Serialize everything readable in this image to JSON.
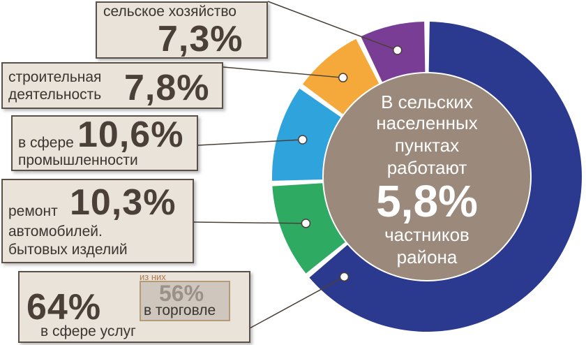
{
  "chart_data": {
    "type": "donut",
    "title": "",
    "slices": [
      {
        "label": "в сфере услуг",
        "value": 64,
        "display": "64%",
        "color": "#2b3a8f"
      },
      {
        "label": "ремонт автомобилей. бытовых изделий",
        "value": 10.3,
        "display": "10,3%",
        "color": "#2eaa63"
      },
      {
        "label": "в сфере промышленности",
        "value": 10.6,
        "display": "10,6%",
        "color": "#2ea3dc"
      },
      {
        "label": "строительная деятельность",
        "value": 7.8,
        "display": "7,8%",
        "color": "#f5a93a"
      },
      {
        "label": "сельское хозяйство",
        "value": 7.3,
        "display": "7,3%",
        "color": "#7a3d96"
      }
    ],
    "center": {
      "text_top": [
        "В сельских",
        "населенных",
        "пунктах",
        "работают"
      ],
      "value": "5,8%",
      "text_bottom": [
        "частников",
        "района"
      ],
      "color": "#9b897b"
    },
    "sub_note": {
      "caption": "из них",
      "value": "56%",
      "label": "в торговле"
    }
  },
  "labels": {
    "agri": {
      "text": "сельское хозяйство",
      "pct": "7,3%"
    },
    "constr": {
      "line1": "строительная",
      "line2": "деятельность",
      "pct": "7,8%"
    },
    "indus": {
      "line1": "в сфере",
      "line2": "промышленности",
      "pct": "10,6%"
    },
    "repair": {
      "line1": "ремонт",
      "line2": "автомобилей.",
      "line3": "бытовых изделий",
      "pct": "10,3%"
    },
    "services": {
      "pct": "64%",
      "label": "в сфере услуг"
    }
  }
}
